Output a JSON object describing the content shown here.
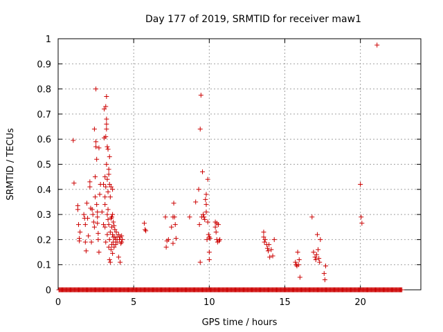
{
  "chart_data": {
    "type": "scatter",
    "title": "Day 177 of 2019, SRMTID for receiver maw1",
    "xlabel": "GPS time / hours",
    "ylabel": "SRMTID / TECUs",
    "xlim": [
      0,
      24
    ],
    "ylim": [
      0,
      1
    ],
    "xticks": [
      0,
      5,
      10,
      15,
      20
    ],
    "yticks": [
      0,
      0.1,
      0.2,
      0.3,
      0.4,
      0.5,
      0.6,
      0.7,
      0.8,
      0.9,
      1
    ],
    "ytick_labels": [
      "0",
      "0.1",
      "0.2",
      "0.3",
      "0.4",
      "0.5",
      "0.6",
      "0.7",
      "0.8",
      "0.9",
      "1"
    ],
    "grid": true,
    "marker": "+",
    "color": "#cc0000",
    "zero_band": {
      "x_start": 0.05,
      "x_end": 22.75,
      "step": 0.05,
      "y": 0
    },
    "series": [
      {
        "name": "maw1",
        "points": [
          [
            1.0,
            0.595
          ],
          [
            1.05,
            0.425
          ],
          [
            1.3,
            0.335
          ],
          [
            1.3,
            0.32
          ],
          [
            1.35,
            0.26
          ],
          [
            1.4,
            0.205
          ],
          [
            1.4,
            0.195
          ],
          [
            1.45,
            0.23
          ],
          [
            1.7,
            0.3
          ],
          [
            1.75,
            0.285
          ],
          [
            1.8,
            0.26
          ],
          [
            1.8,
            0.19
          ],
          [
            1.85,
            0.155
          ],
          [
            1.9,
            0.345
          ],
          [
            1.95,
            0.285
          ],
          [
            2.0,
            0.215
          ],
          [
            2.1,
            0.43
          ],
          [
            2.1,
            0.41
          ],
          [
            2.15,
            0.325
          ],
          [
            2.2,
            0.19
          ],
          [
            2.25,
            0.32
          ],
          [
            2.3,
            0.3
          ],
          [
            2.35,
            0.27
          ],
          [
            2.4,
            0.25
          ],
          [
            2.4,
            0.64
          ],
          [
            2.45,
            0.45
          ],
          [
            2.45,
            0.37
          ],
          [
            2.5,
            0.8
          ],
          [
            2.5,
            0.59
          ],
          [
            2.5,
            0.57
          ],
          [
            2.55,
            0.52
          ],
          [
            2.55,
            0.34
          ],
          [
            2.6,
            0.31
          ],
          [
            2.6,
            0.29
          ],
          [
            2.6,
            0.265
          ],
          [
            2.65,
            0.225
          ],
          [
            2.65,
            0.2
          ],
          [
            2.7,
            0.565
          ],
          [
            2.7,
            0.15
          ],
          [
            2.75,
            0.38
          ],
          [
            2.8,
            0.42
          ],
          [
            2.9,
            0.31
          ],
          [
            3.0,
            0.42
          ],
          [
            3.0,
            0.26
          ],
          [
            3.05,
            0.72
          ],
          [
            3.05,
            0.605
          ],
          [
            3.1,
            0.45
          ],
          [
            3.1,
            0.37
          ],
          [
            3.1,
            0.34
          ],
          [
            3.1,
            0.25
          ],
          [
            3.15,
            0.73
          ],
          [
            3.15,
            0.61
          ],
          [
            3.15,
            0.41
          ],
          [
            3.15,
            0.19
          ],
          [
            3.2,
            0.77
          ],
          [
            3.2,
            0.68
          ],
          [
            3.2,
            0.66
          ],
          [
            3.2,
            0.64
          ],
          [
            3.2,
            0.5
          ],
          [
            3.25,
            0.57
          ],
          [
            3.25,
            0.44
          ],
          [
            3.25,
            0.3
          ],
          [
            3.25,
            0.22
          ],
          [
            3.3,
            0.56
          ],
          [
            3.3,
            0.39
          ],
          [
            3.3,
            0.32
          ],
          [
            3.3,
            0.28
          ],
          [
            3.35,
            0.48
          ],
          [
            3.35,
            0.46
          ],
          [
            3.35,
            0.26
          ],
          [
            3.35,
            0.17
          ],
          [
            3.4,
            0.53
          ],
          [
            3.4,
            0.42
          ],
          [
            3.4,
            0.2
          ],
          [
            3.4,
            0.12
          ],
          [
            3.45,
            0.37
          ],
          [
            3.45,
            0.23
          ],
          [
            3.45,
            0.11
          ],
          [
            3.5,
            0.41
          ],
          [
            3.5,
            0.285
          ],
          [
            3.5,
            0.16
          ],
          [
            3.55,
            0.29
          ],
          [
            3.55,
            0.25
          ],
          [
            3.55,
            0.18
          ],
          [
            3.6,
            0.4
          ],
          [
            3.6,
            0.3
          ],
          [
            3.6,
            0.22
          ],
          [
            3.6,
            0.145
          ],
          [
            3.65,
            0.27
          ],
          [
            3.65,
            0.21
          ],
          [
            3.65,
            0.19
          ],
          [
            3.7,
            0.255
          ],
          [
            3.7,
            0.17
          ],
          [
            3.75,
            0.24
          ],
          [
            3.75,
            0.21
          ],
          [
            3.8,
            0.2
          ],
          [
            3.8,
            0.18
          ],
          [
            3.85,
            0.23
          ],
          [
            3.9,
            0.21
          ],
          [
            3.9,
            0.19
          ],
          [
            4.0,
            0.22
          ],
          [
            4.0,
            0.13
          ],
          [
            4.05,
            0.2
          ],
          [
            4.1,
            0.21
          ],
          [
            4.1,
            0.11
          ],
          [
            4.15,
            0.185
          ],
          [
            4.2,
            0.215
          ],
          [
            4.2,
            0.19
          ],
          [
            4.25,
            0.2
          ],
          [
            5.7,
            0.265
          ],
          [
            5.75,
            0.24
          ],
          [
            5.8,
            0.235
          ],
          [
            7.1,
            0.29
          ],
          [
            7.15,
            0.17
          ],
          [
            7.2,
            0.195
          ],
          [
            7.3,
            0.2
          ],
          [
            7.5,
            0.25
          ],
          [
            7.6,
            0.29
          ],
          [
            7.6,
            0.185
          ],
          [
            7.65,
            0.345
          ],
          [
            7.7,
            0.29
          ],
          [
            7.75,
            0.26
          ],
          [
            7.8,
            0.205
          ],
          [
            8.7,
            0.29
          ],
          [
            9.1,
            0.35
          ],
          [
            9.3,
            0.4
          ],
          [
            9.35,
            0.26
          ],
          [
            9.4,
            0.11
          ],
          [
            9.4,
            0.64
          ],
          [
            9.45,
            0.775
          ],
          [
            9.5,
            0.29
          ],
          [
            9.55,
            0.47
          ],
          [
            9.6,
            0.3
          ],
          [
            9.65,
            0.29
          ],
          [
            9.7,
            0.28
          ],
          [
            9.75,
            0.36
          ],
          [
            9.8,
            0.38
          ],
          [
            9.8,
            0.34
          ],
          [
            9.8,
            0.31
          ],
          [
            9.85,
            0.2
          ],
          [
            9.9,
            0.44
          ],
          [
            9.9,
            0.27
          ],
          [
            9.95,
            0.22
          ],
          [
            10.0,
            0.21
          ],
          [
            10.0,
            0.15
          ],
          [
            10.0,
            0.12
          ],
          [
            10.05,
            0.205
          ],
          [
            10.4,
            0.27
          ],
          [
            10.4,
            0.25
          ],
          [
            10.45,
            0.23
          ],
          [
            10.5,
            0.265
          ],
          [
            10.5,
            0.2
          ],
          [
            10.55,
            0.19
          ],
          [
            10.6,
            0.26
          ],
          [
            10.65,
            0.195
          ],
          [
            10.7,
            0.2
          ],
          [
            13.6,
            0.23
          ],
          [
            13.6,
            0.21
          ],
          [
            13.65,
            0.19
          ],
          [
            13.7,
            0.2
          ],
          [
            13.8,
            0.18
          ],
          [
            13.85,
            0.165
          ],
          [
            13.9,
            0.155
          ],
          [
            13.95,
            0.18
          ],
          [
            14.0,
            0.13
          ],
          [
            14.1,
            0.16
          ],
          [
            14.2,
            0.135
          ],
          [
            14.3,
            0.2
          ],
          [
            15.7,
            0.11
          ],
          [
            15.75,
            0.1
          ],
          [
            15.8,
            0.095
          ],
          [
            15.85,
            0.15
          ],
          [
            15.9,
            0.1
          ],
          [
            15.95,
            0.12
          ],
          [
            16.0,
            0.05
          ],
          [
            16.8,
            0.29
          ],
          [
            16.9,
            0.15
          ],
          [
            17.0,
            0.13
          ],
          [
            17.05,
            0.12
          ],
          [
            17.1,
            0.14
          ],
          [
            17.15,
            0.22
          ],
          [
            17.2,
            0.16
          ],
          [
            17.25,
            0.125
          ],
          [
            17.3,
            0.11
          ],
          [
            17.35,
            0.2
          ],
          [
            17.6,
            0.065
          ],
          [
            17.65,
            0.04
          ],
          [
            17.7,
            0.095
          ],
          [
            20.0,
            0.42
          ],
          [
            20.05,
            0.29
          ],
          [
            20.1,
            0.265
          ],
          [
            21.1,
            0.975
          ]
        ]
      }
    ]
  }
}
